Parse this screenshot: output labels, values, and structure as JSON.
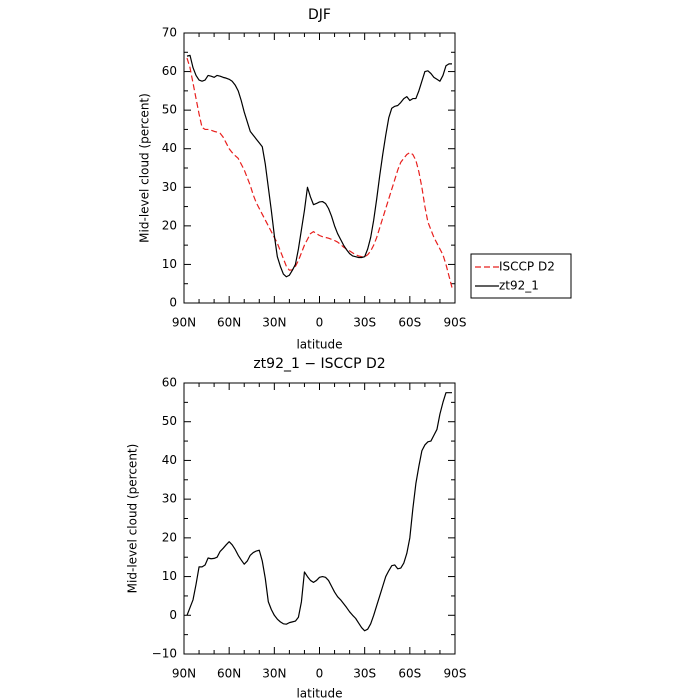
{
  "chart_data": [
    {
      "type": "line",
      "title": "DJF",
      "xlabel": "latitude",
      "ylabel": "Mid-level cloud (percent)",
      "xlim": [
        90,
        -90
      ],
      "ylim": [
        0,
        70
      ],
      "x_ticks": [
        90,
        60,
        30,
        0,
        -30,
        -60,
        -90
      ],
      "x_tick_labels": [
        "90N",
        "60N",
        "30N",
        "0",
        "30S",
        "60S",
        "90S"
      ],
      "y_ticks": [
        0,
        10,
        20,
        30,
        40,
        50,
        60,
        70
      ],
      "y_tick_labels": [
        "0",
        "10",
        "20",
        "30",
        "40",
        "50",
        "60",
        "70"
      ],
      "legend_position": "right",
      "series": [
        {
          "name": "ISCCP D2",
          "color": "#e8201e",
          "dash": "dashed",
          "x": [
            88,
            86,
            84,
            82,
            80,
            78,
            76,
            74,
            72,
            70,
            68,
            66,
            64,
            62,
            60,
            58,
            56,
            54,
            52,
            50,
            48,
            46,
            44,
            42,
            40,
            38,
            36,
            34,
            32,
            30,
            28,
            26,
            24,
            22,
            20,
            18,
            16,
            14,
            12,
            10,
            8,
            6,
            4,
            2,
            0,
            -2,
            -4,
            -6,
            -8,
            -10,
            -12,
            -14,
            -16,
            -18,
            -20,
            -22,
            -24,
            -26,
            -28,
            -30,
            -32,
            -34,
            -36,
            -38,
            -40,
            -42,
            -44,
            -46,
            -48,
            -50,
            -52,
            -54,
            -56,
            -58,
            -60,
            -62,
            -64,
            -66,
            -68,
            -70,
            -72,
            -74,
            -76,
            -78,
            -80,
            -82,
            -84,
            -86,
            -88
          ],
          "values": [
            63.5,
            61,
            57,
            53,
            49,
            45.5,
            45,
            45,
            44.8,
            44.5,
            44.3,
            44,
            43,
            41.5,
            40,
            39,
            38.2,
            37.5,
            36,
            34.5,
            32.5,
            30.5,
            28,
            26,
            24.5,
            23,
            21.5,
            20,
            18.5,
            17,
            15.5,
            13.5,
            11.5,
            9.5,
            8.5,
            8.6,
            9.5,
            11,
            13,
            15,
            16.5,
            18,
            18.5,
            18,
            17.5,
            17.2,
            17,
            16.8,
            16.5,
            16.2,
            15.8,
            15.2,
            14.5,
            14,
            13.5,
            13,
            12.5,
            12.2,
            12,
            12,
            12.5,
            13.5,
            15,
            17,
            19.5,
            22,
            24.5,
            27,
            29.5,
            32,
            34.5,
            36.5,
            37.5,
            38.5,
            39,
            38.5,
            37,
            34,
            30,
            25,
            21,
            19,
            17,
            15.5,
            14,
            12.5,
            10,
            7,
            4
          ]
        },
        {
          "name": "zt92_1",
          "color": "#000000",
          "dash": "solid",
          "x": [
            88,
            86,
            84,
            82,
            80,
            78,
            76,
            74,
            72,
            70,
            68,
            66,
            64,
            62,
            60,
            58,
            56,
            54,
            52,
            50,
            48,
            46,
            44,
            42,
            40,
            38,
            36,
            34,
            32,
            30,
            28,
            26,
            24,
            22,
            20,
            18,
            16,
            14,
            12,
            10,
            8,
            6,
            4,
            2,
            0,
            -2,
            -4,
            -6,
            -8,
            -10,
            -12,
            -14,
            -16,
            -18,
            -20,
            -22,
            -24,
            -26,
            -28,
            -30,
            -32,
            -34,
            -36,
            -38,
            -40,
            -42,
            -44,
            -46,
            -48,
            -50,
            -52,
            -54,
            -56,
            -58,
            -60,
            -62,
            -64,
            -66,
            -68,
            -70,
            -72,
            -74,
            -76,
            -78,
            -80,
            -82,
            -84,
            -86,
            -88
          ],
          "values": [
            64,
            64.2,
            61,
            59,
            57.8,
            57.5,
            57.8,
            59,
            58.8,
            58.5,
            59,
            58.8,
            58.5,
            58.3,
            58,
            57.5,
            56.5,
            55,
            52.5,
            49.5,
            47,
            44.5,
            43.5,
            42.5,
            41.5,
            40.5,
            36,
            30,
            24,
            17.5,
            12,
            9.5,
            7.5,
            6.8,
            7.2,
            8.5,
            10,
            14,
            19,
            24,
            30,
            27.5,
            25.5,
            25.8,
            26.2,
            26.3,
            25.8,
            24.5,
            22.5,
            20,
            18,
            16.5,
            15,
            13.8,
            12.8,
            12.2,
            12,
            11.8,
            11.8,
            12,
            14,
            17,
            21.5,
            27,
            33,
            38.5,
            43.5,
            48,
            50.5,
            51,
            51.2,
            52,
            53,
            53.5,
            52.5,
            53,
            53,
            55,
            57.5,
            60,
            60.2,
            59.5,
            58.5,
            58,
            57.5,
            59,
            61.5,
            62,
            62
          ]
        }
      ]
    },
    {
      "type": "line",
      "title": "zt92_1 − ISCCP D2",
      "xlabel": "latitude",
      "ylabel": "Mid-level cloud (percent)",
      "xlim": [
        90,
        -90
      ],
      "ylim": [
        -10,
        60
      ],
      "x_ticks": [
        90,
        60,
        30,
        0,
        -30,
        -60,
        -90
      ],
      "x_tick_labels": [
        "90N",
        "60N",
        "30N",
        "0",
        "30S",
        "60S",
        "90S"
      ],
      "y_ticks": [
        -10,
        0,
        10,
        20,
        30,
        40,
        50,
        60
      ],
      "y_tick_labels": [
        "−10",
        "0",
        "10",
        "20",
        "30",
        "40",
        "50",
        "60"
      ],
      "series": [
        {
          "color": "#000000",
          "dash": "solid",
          "x": [
            88,
            86,
            84,
            82,
            80,
            78,
            76,
            74,
            72,
            70,
            68,
            66,
            64,
            62,
            60,
            58,
            56,
            54,
            52,
            50,
            48,
            46,
            44,
            42,
            40,
            38,
            36,
            34,
            32,
            30,
            28,
            26,
            24,
            22,
            20,
            18,
            16,
            14,
            12,
            10,
            8,
            6,
            4,
            2,
            0,
            -2,
            -4,
            -6,
            -8,
            -10,
            -12,
            -14,
            -16,
            -18,
            -20,
            -22,
            -24,
            -26,
            -28,
            -30,
            -32,
            -34,
            -36,
            -38,
            -40,
            -42,
            -44,
            -46,
            -48,
            -50,
            -52,
            -54,
            -56,
            -58,
            -60,
            -62,
            -64,
            -66,
            -68,
            -70,
            -72,
            -74,
            -76,
            -78,
            -80,
            -82,
            -84,
            -86,
            -88
          ],
          "values": [
            0,
            2,
            4,
            8,
            12.5,
            12.5,
            13,
            14.8,
            14.6,
            14.7,
            15,
            16.5,
            17.3,
            18.2,
            19,
            18.2,
            17,
            15.5,
            14.3,
            13.2,
            14,
            15.5,
            16.2,
            16.6,
            16.8,
            14,
            9.5,
            3.5,
            1.5,
            0,
            -1,
            -1.7,
            -2.2,
            -2.3,
            -1.9,
            -1.7,
            -1.5,
            -0.5,
            3.5,
            11.2,
            10,
            9,
            8.5,
            9,
            9.8,
            10,
            9.8,
            9,
            7.5,
            6,
            4.8,
            4,
            3,
            2,
            0.9,
            0,
            -0.8,
            -2,
            -3.2,
            -4,
            -3.6,
            -2.2,
            0,
            2.5,
            5,
            7.5,
            10,
            11.5,
            12.8,
            13,
            12,
            12.2,
            13.5,
            16,
            20,
            27.5,
            34,
            38.5,
            42.5,
            44,
            44.8,
            45,
            46.5,
            48,
            52,
            55,
            57.5,
            57.5,
            57.5
          ]
        }
      ]
    }
  ]
}
